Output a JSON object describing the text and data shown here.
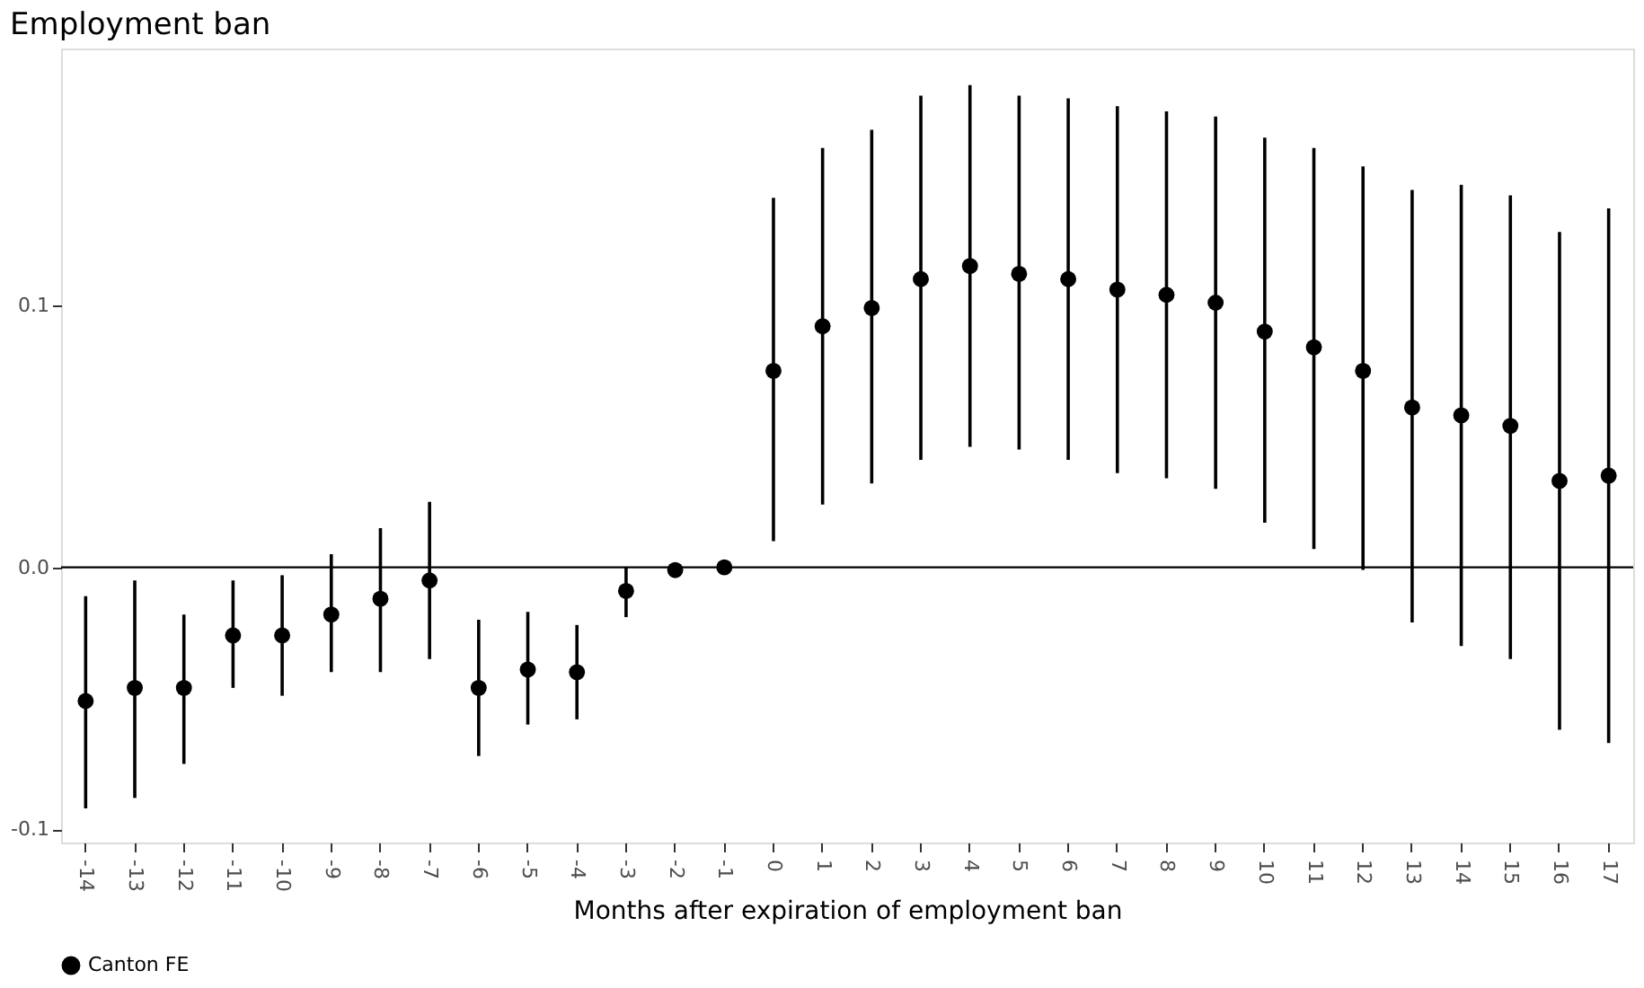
{
  "chart_data": {
    "type": "scatter",
    "title": "Employment ban",
    "xlabel": "Months after expiration of employment ban",
    "categories": [
      "-14",
      "-13",
      "-12",
      "-11",
      "-10",
      "-9",
      "-8",
      "-7",
      "-6",
      "-5",
      "-4",
      "-3",
      "-2",
      "-1",
      "0",
      "1",
      "2",
      "3",
      "4",
      "5",
      "6",
      "7",
      "8",
      "9",
      "10",
      "11",
      "12",
      "13",
      "14",
      "15",
      "16",
      "17"
    ],
    "series": [
      {
        "name": "Canton FE",
        "color": "#000000",
        "values": [
          -0.051,
          -0.046,
          -0.046,
          -0.026,
          -0.026,
          -0.018,
          -0.012,
          -0.005,
          -0.046,
          -0.039,
          -0.04,
          -0.009,
          -0.001,
          0.0,
          0.075,
          0.092,
          0.099,
          0.11,
          0.115,
          0.112,
          0.11,
          0.106,
          0.104,
          0.101,
          0.09,
          0.084,
          0.075,
          0.061,
          0.058,
          0.054,
          0.033,
          0.035
        ],
        "errors": [
          [
            -0.092,
            -0.011
          ],
          [
            -0.088,
            -0.005
          ],
          [
            -0.075,
            -0.018
          ],
          [
            -0.046,
            -0.005
          ],
          [
            -0.049,
            -0.003
          ],
          [
            -0.04,
            0.005
          ],
          [
            -0.04,
            0.015
          ],
          [
            -0.035,
            0.025
          ],
          [
            -0.072,
            -0.02
          ],
          [
            -0.06,
            -0.017
          ],
          [
            -0.058,
            -0.022
          ],
          [
            -0.019,
            0.0
          ],
          [
            -0.004,
            0.001
          ],
          null,
          [
            0.01,
            0.141
          ],
          [
            0.024,
            0.16
          ],
          [
            0.032,
            0.167
          ],
          [
            0.041,
            0.18
          ],
          [
            0.046,
            0.184
          ],
          [
            0.045,
            0.18
          ],
          [
            0.041,
            0.179
          ],
          [
            0.036,
            0.176
          ],
          [
            0.034,
            0.174
          ],
          [
            0.03,
            0.172
          ],
          [
            0.017,
            0.164
          ],
          [
            0.007,
            0.16
          ],
          [
            -0.001,
            0.153
          ],
          [
            -0.021,
            0.144
          ],
          [
            -0.03,
            0.146
          ],
          [
            -0.035,
            0.142
          ],
          [
            -0.062,
            0.128
          ],
          [
            -0.067,
            0.137
          ]
        ]
      }
    ],
    "ylim": [
      -0.105,
      0.198
    ],
    "yticks": [
      {
        "value": -0.1,
        "label": "-0.1"
      },
      {
        "value": 0,
        "label": "0.0"
      },
      {
        "value": 0.1,
        "label": "0.1"
      }
    ],
    "ref_lines": [
      {
        "axis": "y",
        "value": 0,
        "color": "#000000"
      }
    ],
    "grid": false,
    "legend": "bottom",
    "marker": "circle"
  }
}
